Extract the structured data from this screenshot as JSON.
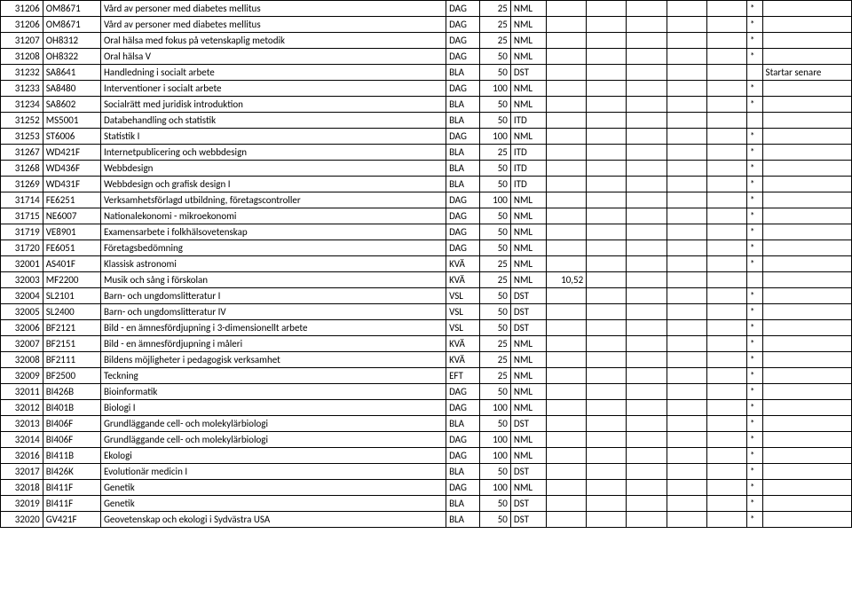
{
  "rows": [
    {
      "c1": "31206",
      "c2": "OM8671",
      "desc": "Vård av personer med diabetes mellitus",
      "type": "DAG",
      "num": "25",
      "cat": "NML",
      "e1": "",
      "e2": "",
      "e3": "",
      "e4": "",
      "e5": "",
      "star": "*",
      "end": ""
    },
    {
      "c1": "31206",
      "c2": "OM8671",
      "desc": "Vård av personer med diabetes mellitus",
      "type": "DAG",
      "num": "25",
      "cat": "NML",
      "e1": "",
      "e2": "",
      "e3": "",
      "e4": "",
      "e5": "",
      "star": "*",
      "end": ""
    },
    {
      "c1": "31207",
      "c2": "OH8312",
      "desc": "Oral hälsa med fokus på vetenskaplig metodik",
      "type": "DAG",
      "num": "25",
      "cat": "NML",
      "e1": "",
      "e2": "",
      "e3": "",
      "e4": "",
      "e5": "",
      "star": "*",
      "end": ""
    },
    {
      "c1": "31208",
      "c2": "OH8322",
      "desc": "Oral hälsa V",
      "type": "DAG",
      "num": "50",
      "cat": "NML",
      "e1": "",
      "e2": "",
      "e3": "",
      "e4": "",
      "e5": "",
      "star": "*",
      "end": ""
    },
    {
      "c1": "31232",
      "c2": "SA8641",
      "desc": "Handledning i socialt arbete",
      "type": "BLA",
      "num": "50",
      "cat": "DST",
      "e1": "",
      "e2": "",
      "e3": "",
      "e4": "",
      "e5": "",
      "star": "",
      "end": "Startar senare"
    },
    {
      "c1": "31233",
      "c2": "SA8480",
      "desc": "Interventioner i socialt arbete",
      "type": "DAG",
      "num": "100",
      "cat": "NML",
      "e1": "",
      "e2": "",
      "e3": "",
      "e4": "",
      "e5": "",
      "star": "*",
      "end": ""
    },
    {
      "c1": "31234",
      "c2": "SA8602",
      "desc": "Socialrätt med juridisk introduktion",
      "type": "BLA",
      "num": "50",
      "cat": "NML",
      "e1": "",
      "e2": "",
      "e3": "",
      "e4": "",
      "e5": "",
      "star": "*",
      "end": ""
    },
    {
      "c1": "31252",
      "c2": "MS5001",
      "desc": "Databehandling och statistik",
      "type": "BLA",
      "num": "50",
      "cat": "ITD",
      "e1": "",
      "e2": "",
      "e3": "",
      "e4": "",
      "e5": "",
      "star": "",
      "end": ""
    },
    {
      "c1": "31253",
      "c2": "ST6006",
      "desc": "Statistik I",
      "type": "DAG",
      "num": "100",
      "cat": "NML",
      "e1": "",
      "e2": "",
      "e3": "",
      "e4": "",
      "e5": "",
      "star": "*",
      "end": ""
    },
    {
      "c1": "31267",
      "c2": "WD421F",
      "desc": "Internetpublicering och webbdesign",
      "type": "BLA",
      "num": "25",
      "cat": "ITD",
      "e1": "",
      "e2": "",
      "e3": "",
      "e4": "",
      "e5": "",
      "star": "*",
      "end": ""
    },
    {
      "c1": "31268",
      "c2": "WD436F",
      "desc": "Webbdesign",
      "type": "BLA",
      "num": "50",
      "cat": "ITD",
      "e1": "",
      "e2": "",
      "e3": "",
      "e4": "",
      "e5": "",
      "star": "*",
      "end": ""
    },
    {
      "c1": "31269",
      "c2": "WD431F",
      "desc": "Webbdesign och grafisk design I",
      "type": "BLA",
      "num": "50",
      "cat": "ITD",
      "e1": "",
      "e2": "",
      "e3": "",
      "e4": "",
      "e5": "",
      "star": "*",
      "end": ""
    },
    {
      "c1": "31714",
      "c2": "FE6251",
      "desc": "Verksamhetsförlagd utbildning, företagscontroller",
      "type": "DAG",
      "num": "100",
      "cat": "NML",
      "e1": "",
      "e2": "",
      "e3": "",
      "e4": "",
      "e5": "",
      "star": "*",
      "end": ""
    },
    {
      "c1": "31715",
      "c2": "NE6007",
      "desc": "Nationalekonomi - mikroekonomi",
      "type": "DAG",
      "num": "50",
      "cat": "NML",
      "e1": "",
      "e2": "",
      "e3": "",
      "e4": "",
      "e5": "",
      "star": "*",
      "end": ""
    },
    {
      "c1": "31719",
      "c2": "VE8901",
      "desc": "Examensarbete i folkhälsovetenskap",
      "type": "DAG",
      "num": "50",
      "cat": "NML",
      "e1": "",
      "e2": "",
      "e3": "",
      "e4": "",
      "e5": "",
      "star": "*",
      "end": ""
    },
    {
      "c1": "31720",
      "c2": "FE6051",
      "desc": "Företagsbedömning",
      "type": "DAG",
      "num": "50",
      "cat": "NML",
      "e1": "",
      "e2": "",
      "e3": "",
      "e4": "",
      "e5": "",
      "star": "*",
      "end": ""
    },
    {
      "c1": "32001",
      "c2": "AS401F",
      "desc": "Klassisk astronomi",
      "type": "KVÄ",
      "num": "25",
      "cat": "NML",
      "e1": "",
      "e2": "",
      "e3": "",
      "e4": "",
      "e5": "",
      "star": "*",
      "end": ""
    },
    {
      "c1": "32003",
      "c2": "MF2200",
      "desc": "Musik och sång i förskolan",
      "type": "KVÄ",
      "num": "25",
      "cat": "NML",
      "e1": "10,52",
      "e2": "",
      "e3": "",
      "e4": "",
      "e5": "",
      "star": "",
      "end": ""
    },
    {
      "c1": "32004",
      "c2": "SL2101",
      "desc": "Barn- och ungdomslitteratur I",
      "type": "VSL",
      "num": "50",
      "cat": "DST",
      "e1": "",
      "e2": "",
      "e3": "",
      "e4": "",
      "e5": "",
      "star": "*",
      "end": ""
    },
    {
      "c1": "32005",
      "c2": "SL2400",
      "desc": "Barn- och ungdomslitteratur IV",
      "type": "VSL",
      "num": "50",
      "cat": "DST",
      "e1": "",
      "e2": "",
      "e3": "",
      "e4": "",
      "e5": "",
      "star": "*",
      "end": ""
    },
    {
      "c1": "32006",
      "c2": "BF2121",
      "desc": "Bild - en ämnesfördjupning i 3-dimensionellt arbete",
      "type": "VSL",
      "num": "50",
      "cat": "DST",
      "e1": "",
      "e2": "",
      "e3": "",
      "e4": "",
      "e5": "",
      "star": "*",
      "end": ""
    },
    {
      "c1": "32007",
      "c2": "BF2151",
      "desc": "Bild - en ämnesfördjupning i måleri",
      "type": "KVÄ",
      "num": "25",
      "cat": "NML",
      "e1": "",
      "e2": "",
      "e3": "",
      "e4": "",
      "e5": "",
      "star": "*",
      "end": ""
    },
    {
      "c1": "32008",
      "c2": "BF2111",
      "desc": "Bildens möjligheter i pedagogisk verksamhet",
      "type": "KVÄ",
      "num": "25",
      "cat": "NML",
      "e1": "",
      "e2": "",
      "e3": "",
      "e4": "",
      "e5": "",
      "star": "*",
      "end": ""
    },
    {
      "c1": "32009",
      "c2": "BF2500",
      "desc": "Teckning",
      "type": "EFT",
      "num": "25",
      "cat": "NML",
      "e1": "",
      "e2": "",
      "e3": "",
      "e4": "",
      "e5": "",
      "star": "*",
      "end": ""
    },
    {
      "c1": "32011",
      "c2": "BI426B",
      "desc": "Bioinformatik",
      "type": "DAG",
      "num": "50",
      "cat": "NML",
      "e1": "",
      "e2": "",
      "e3": "",
      "e4": "",
      "e5": "",
      "star": "*",
      "end": ""
    },
    {
      "c1": "32012",
      "c2": "BI401B",
      "desc": "Biologi I",
      "type": "DAG",
      "num": "100",
      "cat": "NML",
      "e1": "",
      "e2": "",
      "e3": "",
      "e4": "",
      "e5": "",
      "star": "*",
      "end": ""
    },
    {
      "c1": "32013",
      "c2": "BI406F",
      "desc": "Grundläggande cell- och molekylärbiologi",
      "type": "BLA",
      "num": "50",
      "cat": "DST",
      "e1": "",
      "e2": "",
      "e3": "",
      "e4": "",
      "e5": "",
      "star": "*",
      "end": ""
    },
    {
      "c1": "32014",
      "c2": "BI406F",
      "desc": "Grundläggande cell- och molekylärbiologi",
      "type": "DAG",
      "num": "100",
      "cat": "NML",
      "e1": "",
      "e2": "",
      "e3": "",
      "e4": "",
      "e5": "",
      "star": "*",
      "end": ""
    },
    {
      "c1": "32016",
      "c2": "BI411B",
      "desc": "Ekologi",
      "type": "DAG",
      "num": "100",
      "cat": "NML",
      "e1": "",
      "e2": "",
      "e3": "",
      "e4": "",
      "e5": "",
      "star": "*",
      "end": ""
    },
    {
      "c1": "32017",
      "c2": "BI426K",
      "desc": "Evolutionär medicin I",
      "type": "BLA",
      "num": "50",
      "cat": "DST",
      "e1": "",
      "e2": "",
      "e3": "",
      "e4": "",
      "e5": "",
      "star": "*",
      "end": ""
    },
    {
      "c1": "32018",
      "c2": "BI411F",
      "desc": "Genetik",
      "type": "DAG",
      "num": "100",
      "cat": "NML",
      "e1": "",
      "e2": "",
      "e3": "",
      "e4": "",
      "e5": "",
      "star": "*",
      "end": ""
    },
    {
      "c1": "32019",
      "c2": "BI411F",
      "desc": "Genetik",
      "type": "BLA",
      "num": "50",
      "cat": "DST",
      "e1": "",
      "e2": "",
      "e3": "",
      "e4": "",
      "e5": "",
      "star": "*",
      "end": ""
    },
    {
      "c1": "32020",
      "c2": "GV421F",
      "desc": "Geovetenskap och ekologi i Sydvästra USA",
      "type": "BLA",
      "num": "50",
      "cat": "DST",
      "e1": "",
      "e2": "",
      "e3": "",
      "e4": "",
      "e5": "",
      "star": "*",
      "end": ""
    }
  ]
}
